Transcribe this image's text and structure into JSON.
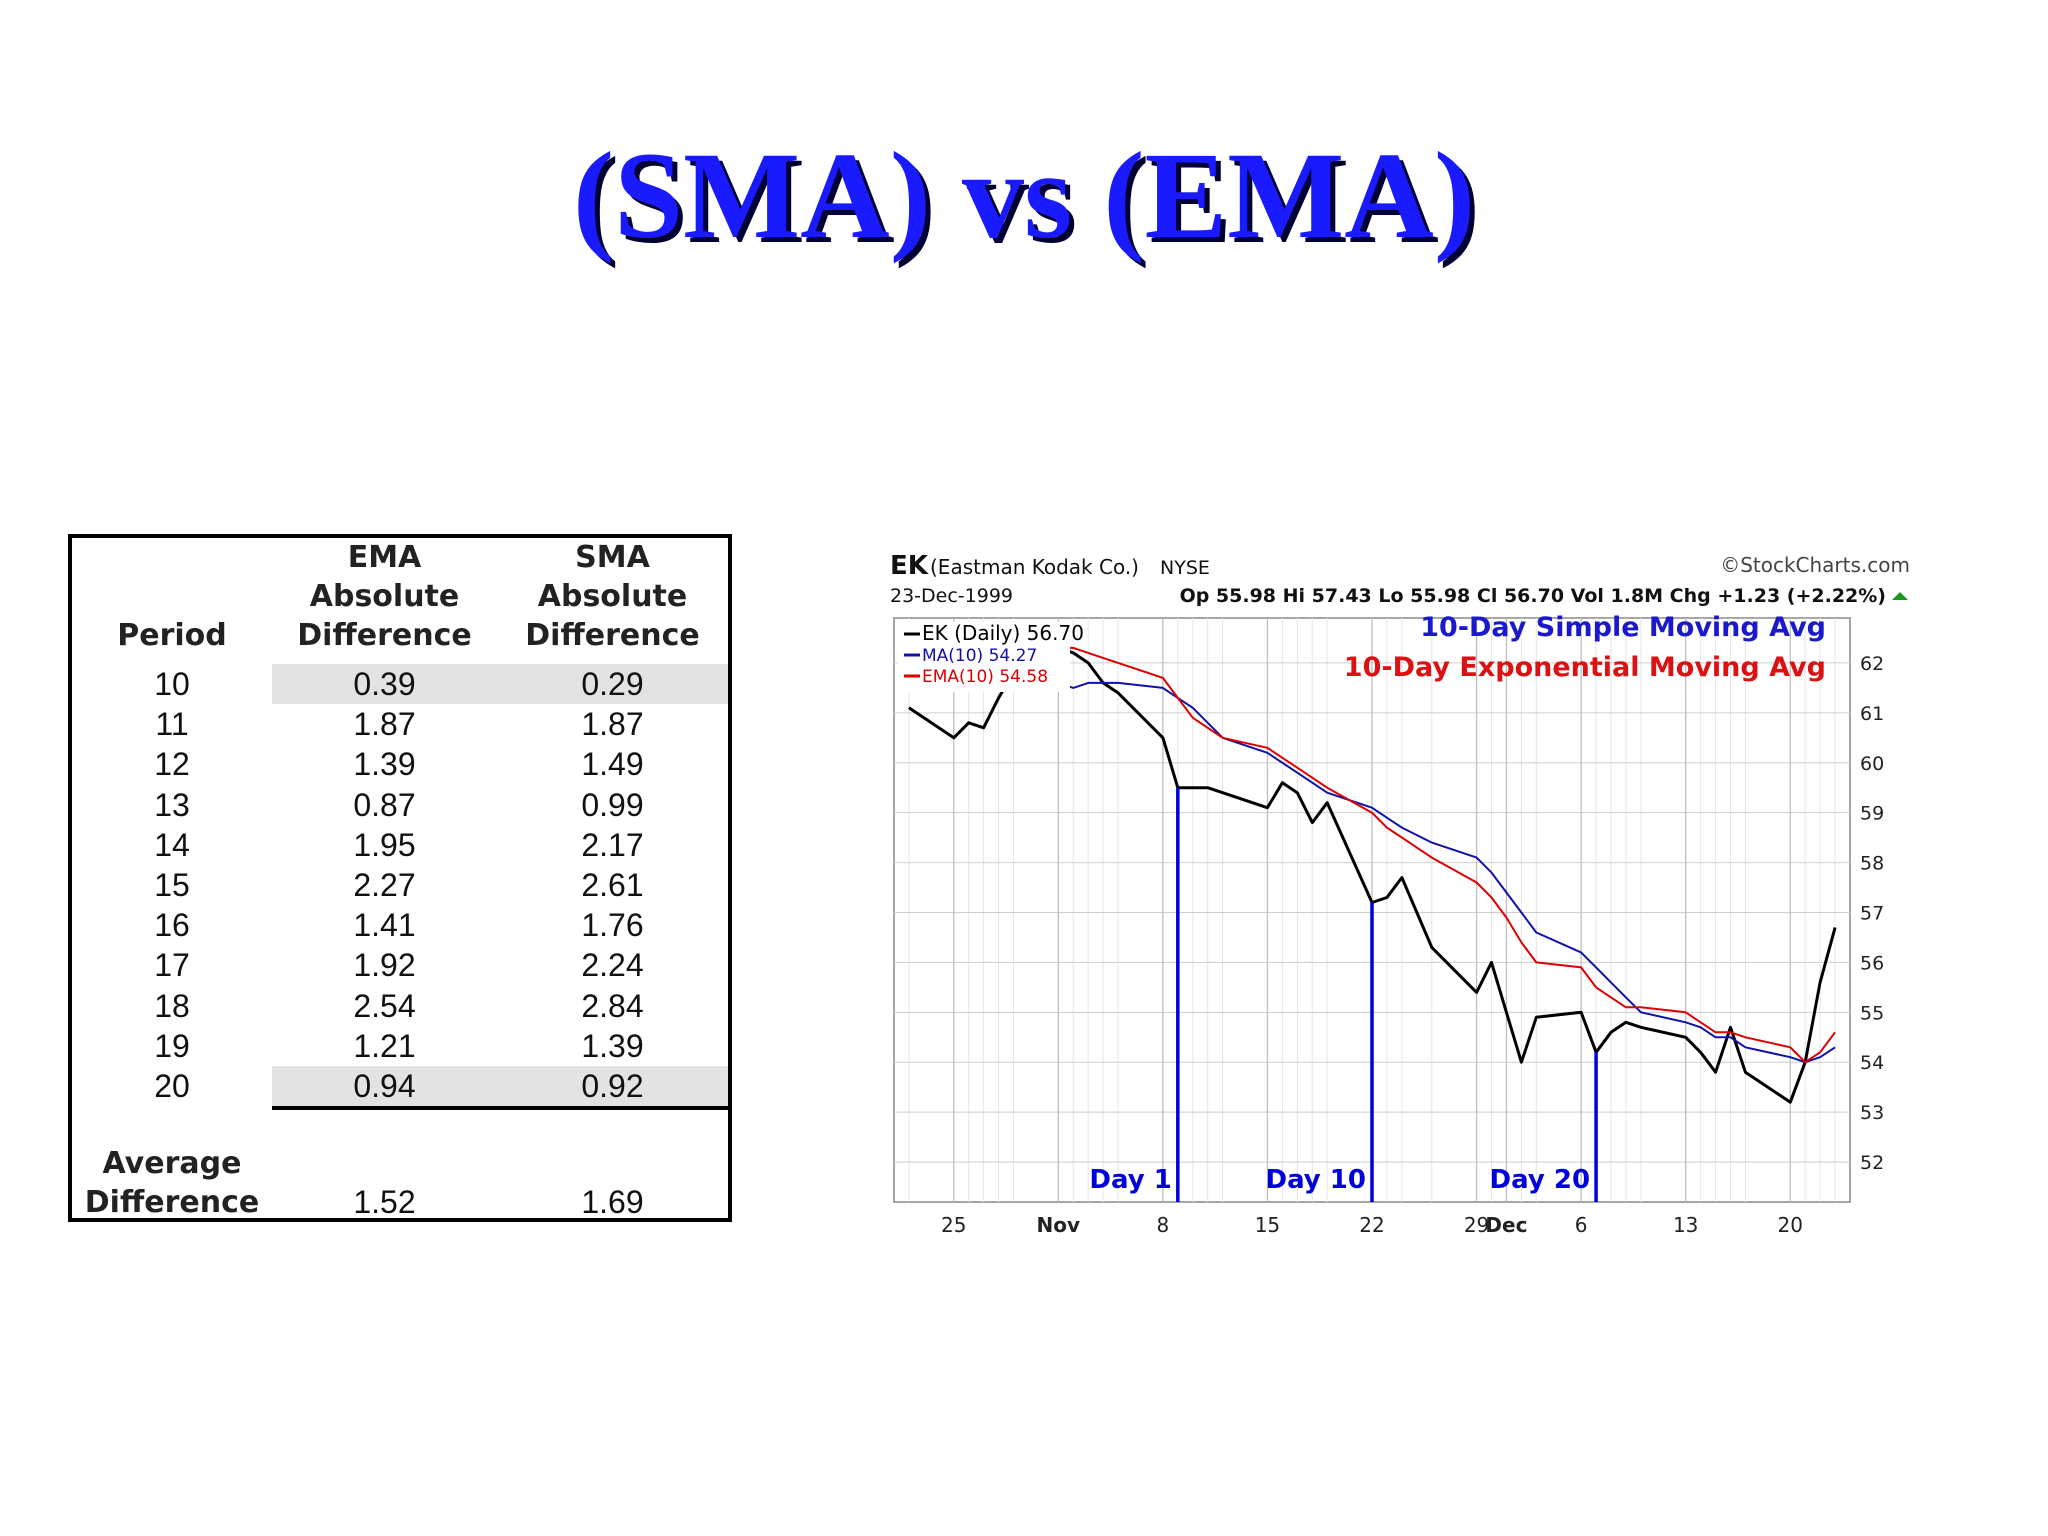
{
  "title": "(SMA) vs (EMA)",
  "table": {
    "headers": {
      "period": "Period",
      "ema": [
        "EMA",
        "Absolute",
        "Difference"
      ],
      "sma": [
        "SMA",
        "Absolute",
        "Difference"
      ]
    },
    "rows": [
      {
        "period": "10",
        "ema": "0.39",
        "sma": "0.29"
      },
      {
        "period": "11",
        "ema": "1.87",
        "sma": "1.87"
      },
      {
        "period": "12",
        "ema": "1.39",
        "sma": "1.49"
      },
      {
        "period": "13",
        "ema": "0.87",
        "sma": "0.99"
      },
      {
        "period": "14",
        "ema": "1.95",
        "sma": "2.17"
      },
      {
        "period": "15",
        "ema": "2.27",
        "sma": "2.61"
      },
      {
        "period": "16",
        "ema": "1.41",
        "sma": "1.76"
      },
      {
        "period": "17",
        "ema": "1.92",
        "sma": "2.24"
      },
      {
        "period": "18",
        "ema": "2.54",
        "sma": "2.84"
      },
      {
        "period": "19",
        "ema": "1.21",
        "sma": "1.39"
      },
      {
        "period": "20",
        "ema": "0.94",
        "sma": "0.92"
      }
    ],
    "footer": {
      "label": [
        "Average",
        "Difference"
      ],
      "ema": "1.52",
      "sma": "1.69"
    }
  },
  "chart_data": {
    "type": "line",
    "header": {
      "symbol": "EK",
      "company": "(Eastman Kodak Co.)",
      "exchange": "NYSE",
      "date": "23-Dec-1999",
      "source": "©StockCharts.com",
      "quote": "Op 55.98  Hi 57.43  Lo 55.98  Cl 56.70  Vol 1.8M  Chg +1.23 (+2.22%)"
    },
    "legend": [
      "EK (Daily) 56.70",
      "MA(10) 54.27",
      "EMA(10) 54.58"
    ],
    "annotations": [
      "10-Day Simple Moving Avg",
      "10-Day Exponential Moving Avg"
    ],
    "markers": [
      {
        "label": "Day 1",
        "x": "1999-11-09"
      },
      {
        "label": "Day 10",
        "x": "1999-11-22"
      },
      {
        "label": "Day 20",
        "x": "1999-12-07"
      }
    ],
    "x_tick_labels": [
      {
        "label": "25",
        "x": "1999-10-25"
      },
      {
        "label": "Nov",
        "x": "1999-11-01"
      },
      {
        "label": "8",
        "x": "1999-11-08"
      },
      {
        "label": "15",
        "x": "1999-11-15"
      },
      {
        "label": "22",
        "x": "1999-11-22"
      },
      {
        "label": "29",
        "x": "1999-11-29"
      },
      {
        "label": "Dec",
        "x": "1999-12-01"
      },
      {
        "label": "6",
        "x": "1999-12-06"
      },
      {
        "label": "13",
        "x": "1999-12-13"
      },
      {
        "label": "20",
        "x": "1999-12-20"
      }
    ],
    "ylim": [
      51.2,
      62.9
    ],
    "yticks": [
      52,
      53,
      54,
      55,
      56,
      57,
      58,
      59,
      60,
      61,
      62
    ],
    "x_dates": [
      "1999-10-22",
      "1999-10-25",
      "1999-10-26",
      "1999-10-27",
      "1999-10-28",
      "1999-10-29",
      "1999-11-01",
      "1999-11-02",
      "1999-11-03",
      "1999-11-04",
      "1999-11-05",
      "1999-11-08",
      "1999-11-09",
      "1999-11-10",
      "1999-11-11",
      "1999-11-12",
      "1999-11-15",
      "1999-11-16",
      "1999-11-17",
      "1999-11-18",
      "1999-11-19",
      "1999-11-22",
      "1999-11-23",
      "1999-11-24",
      "1999-11-26",
      "1999-11-29",
      "1999-11-30",
      "1999-12-01",
      "1999-12-02",
      "1999-12-03",
      "1999-12-06",
      "1999-12-07",
      "1999-12-08",
      "1999-12-09",
      "1999-12-10",
      "1999-12-13",
      "1999-12-14",
      "1999-12-15",
      "1999-12-16",
      "1999-12-17",
      "1999-12-20",
      "1999-12-21",
      "1999-12-22",
      "1999-12-23"
    ],
    "series": [
      {
        "name": "EK (Daily) 56.70",
        "color": "#000000",
        "values": [
          61.1,
          60.5,
          60.8,
          60.7,
          61.3,
          61.8,
          62.3,
          62.2,
          62.0,
          61.6,
          61.4,
          60.5,
          59.5,
          59.5,
          59.5,
          59.4,
          59.1,
          59.6,
          59.4,
          58.8,
          59.2,
          57.2,
          57.3,
          57.7,
          56.3,
          55.4,
          56.0,
          55.0,
          54.0,
          54.9,
          55.0,
          54.2,
          54.6,
          54.8,
          54.7,
          54.5,
          54.2,
          53.8,
          54.7,
          53.8,
          53.2,
          54.0,
          55.6,
          56.7
        ]
      },
      {
        "name": "MA(10) 54.27",
        "color": "#1010aa",
        "values": [
          null,
          null,
          null,
          null,
          null,
          null,
          61.6,
          61.5,
          61.6,
          61.6,
          61.6,
          61.5,
          61.3,
          61.1,
          60.8,
          60.5,
          60.2,
          60.0,
          59.8,
          59.6,
          59.4,
          59.1,
          58.9,
          58.7,
          58.4,
          58.1,
          57.8,
          57.4,
          57.0,
          56.6,
          56.2,
          55.9,
          55.6,
          55.3,
          55.0,
          54.8,
          54.7,
          54.5,
          54.5,
          54.3,
          54.1,
          54.0,
          54.1,
          54.3
        ]
      },
      {
        "name": "EMA(10) 54.58",
        "color": "#dd0000",
        "values": [
          null,
          null,
          null,
          null,
          null,
          null,
          62.3,
          62.3,
          62.2,
          62.1,
          62.0,
          61.7,
          61.3,
          60.9,
          60.7,
          60.5,
          60.3,
          60.1,
          59.9,
          59.7,
          59.5,
          59.0,
          58.7,
          58.5,
          58.1,
          57.6,
          57.3,
          56.9,
          56.4,
          56.0,
          55.9,
          55.5,
          55.3,
          55.1,
          55.1,
          55.0,
          54.8,
          54.6,
          54.6,
          54.5,
          54.3,
          54.0,
          54.2,
          54.6
        ]
      }
    ],
    "colors": {
      "title": "#1a1aff",
      "annotation_sma": "#1a1acc",
      "annotation_ema": "#dd1111",
      "marker": "#0000dd"
    }
  }
}
